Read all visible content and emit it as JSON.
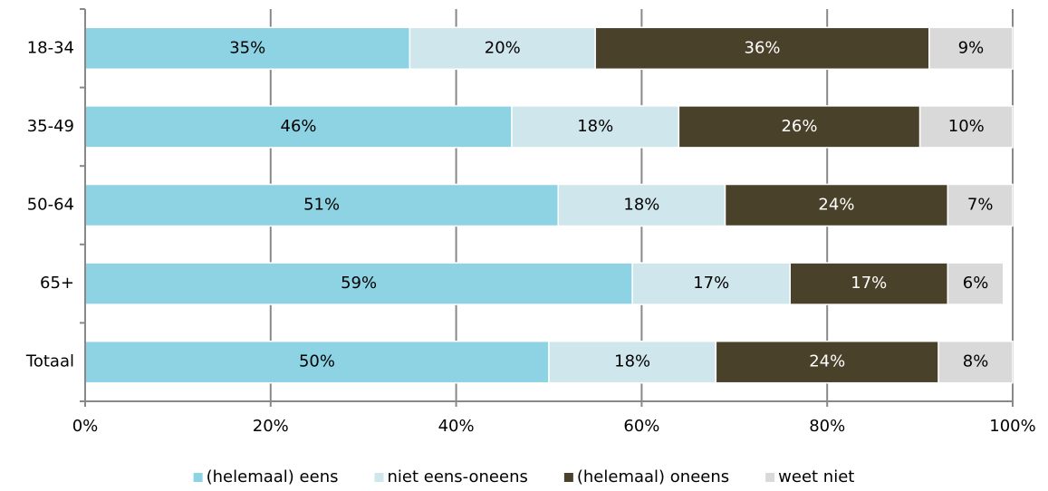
{
  "chart_data": {
    "type": "stacked-barh",
    "categories": [
      "18-34",
      "35-49",
      "50-64",
      "65+",
      "Totaal"
    ],
    "series": [
      {
        "name": "(helemaal) eens",
        "color": "#8dd3e3",
        "values": [
          35,
          46,
          51,
          59,
          50
        ],
        "value_labels": [
          "35%",
          "46%",
          "51%",
          "59%",
          "50%"
        ]
      },
      {
        "name": "niet eens-oneens",
        "color": "#cfe6ec",
        "values": [
          20,
          18,
          18,
          17,
          18
        ],
        "value_labels": [
          "20%",
          "18%",
          "18%",
          "17%",
          "18%"
        ]
      },
      {
        "name": "(helemaal) oneens",
        "color": "#4a412a",
        "values": [
          36,
          26,
          24,
          17,
          24
        ],
        "value_labels": [
          "36%",
          "26%",
          "24%",
          "17%",
          "24%"
        ]
      },
      {
        "name": "weet niet",
        "color": "#d9d9d9",
        "values": [
          9,
          10,
          7,
          6,
          8
        ],
        "value_labels": [
          "9%",
          "10%",
          "7%",
          "6%",
          "8%"
        ]
      }
    ],
    "xlim": [
      0,
      100
    ],
    "xticks": [
      {
        "value": 0,
        "label": "0%"
      },
      {
        "value": 20,
        "label": "20%"
      },
      {
        "value": 40,
        "label": "40%"
      },
      {
        "value": 60,
        "label": "60%"
      },
      {
        "value": 80,
        "label": "80%"
      },
      {
        "value": 100,
        "label": "100%"
      }
    ],
    "grid": true,
    "legend": "bottom"
  }
}
